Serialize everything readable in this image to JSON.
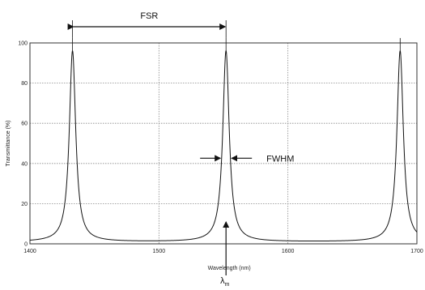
{
  "chart_data": {
    "type": "line",
    "title": "",
    "xlabel": "Wavelength (nm)",
    "ylabel": "Transmittance (%)",
    "xlim": [
      1400,
      1700
    ],
    "ylim": [
      0,
      100
    ],
    "xticks": [
      1400,
      1500,
      1600,
      1700
    ],
    "yticks": [
      0,
      20,
      40,
      60,
      80,
      100
    ],
    "xtick_labels": [
      "1400",
      "1500",
      "1600",
      "1700"
    ],
    "ytick_labels": [
      "0",
      "20",
      "40",
      "60",
      "80",
      "100"
    ],
    "grid": true,
    "series": [
      {
        "peaks": [
          1433,
          1552,
          1687
        ],
        "peak_value": 96,
        "baseline_value": 1,
        "fwhm": 6
      }
    ],
    "annotations": {
      "fsr": {
        "text": "FSR",
        "from": 1433,
        "to": 1552,
        "y": 108
      },
      "fwhm": {
        "text": "FWHM",
        "at": 1552,
        "y": 41
      },
      "lambda": {
        "text": "λ",
        "subscript": "m",
        "at": 1552
      }
    }
  }
}
